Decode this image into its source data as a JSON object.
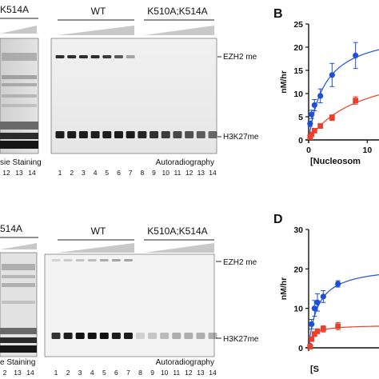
{
  "top": {
    "left_header": "K514A",
    "wt_header": "WT",
    "mut_header": "K510A;K514A",
    "ezh2_label": "EZH2 me",
    "h3_label": "H3K27me",
    "left_caption": "sie Staining",
    "right_caption": "Autoradiography",
    "left_lanes": [
      "12",
      "13",
      "14"
    ],
    "right_lanes": [
      "1",
      "2",
      "3",
      "4",
      "5",
      "6",
      "7",
      "8",
      "9",
      "10",
      "11",
      "12",
      "13",
      "14"
    ]
  },
  "bottom": {
    "left_header": "514A",
    "wt_header": "WT",
    "mut_header": "K510A;K514A",
    "ezh2_label": "EZH2 me",
    "h3_label": "H3K27me",
    "left_caption": "e Staining",
    "right_caption": "Autoradiography",
    "left_lanes": [
      "2",
      "13",
      "14"
    ],
    "right_lanes": [
      "1",
      "2",
      "3",
      "4",
      "5",
      "6",
      "7",
      "8",
      "9",
      "10",
      "11",
      "12",
      "13",
      "14"
    ]
  },
  "chart_data": [
    {
      "panel_label": "B",
      "type": "scatter",
      "ylabel": "nM/hr",
      "xlabel": "[Nucleosom",
      "xlim": [
        0,
        15
      ],
      "ylim": [
        0,
        25
      ],
      "x_ticks": [
        "0",
        "10"
      ],
      "y_ticks": [
        "0",
        "5",
        "10",
        "15",
        "20",
        "25"
      ],
      "colors": {
        "wt": "#1f4fd8",
        "mut": "#e8402a"
      },
      "series": [
        {
          "color": "wt",
          "marker": "circle",
          "x": [
            0.25,
            0.5,
            1,
            2,
            4,
            8
          ],
          "y": [
            3.5,
            5.5,
            7.5,
            9.5,
            14,
            18.2
          ],
          "err": [
            0.6,
            0.9,
            1.2,
            1.5,
            2.5,
            2.8
          ],
          "fit": {
            "vmax": 24,
            "km": 2.8
          }
        },
        {
          "color": "mut",
          "marker": "square",
          "x": [
            0.25,
            0.5,
            1,
            2,
            4,
            8
          ],
          "y": [
            0.6,
            1.2,
            2.0,
            3.0,
            4.8,
            8.5
          ],
          "err": [
            0.3,
            0.3,
            0.4,
            0.5,
            0.6,
            0.8
          ],
          "fit": {
            "vmax": 17,
            "km": 9
          }
        }
      ]
    },
    {
      "panel_label": "D",
      "type": "scatter",
      "ylabel": "nM/hr",
      "xlabel": "[S",
      "xlim": [
        0,
        15
      ],
      "ylim": [
        0,
        30
      ],
      "x_ticks": [],
      "y_ticks": [
        "0",
        "10",
        "20",
        "30"
      ],
      "colors": {
        "wt": "#1f4fd8",
        "mut": "#e8402a"
      },
      "series": [
        {
          "color": "wt",
          "marker": "circle",
          "x": [
            0.25,
            0.5,
            1,
            1.5,
            2.5,
            5
          ],
          "y": [
            0.5,
            6,
            10,
            11.5,
            13,
            16.2
          ],
          "err": [
            0.4,
            1.2,
            2.0,
            2.2,
            1.5,
            0.8
          ],
          "fit": {
            "vmax": 21,
            "km": 1.6
          }
        },
        {
          "color": "mut",
          "marker": "square",
          "x": [
            0.25,
            0.5,
            1,
            1.5,
            2.5,
            5
          ],
          "y": [
            0.3,
            2.2,
            3.5,
            4.2,
            4.8,
            5.5
          ],
          "err": [
            0.3,
            0.5,
            0.6,
            0.6,
            0.8,
            0.9
          ],
          "fit": {
            "vmax": 5.8,
            "km": 0.7
          }
        }
      ]
    }
  ]
}
